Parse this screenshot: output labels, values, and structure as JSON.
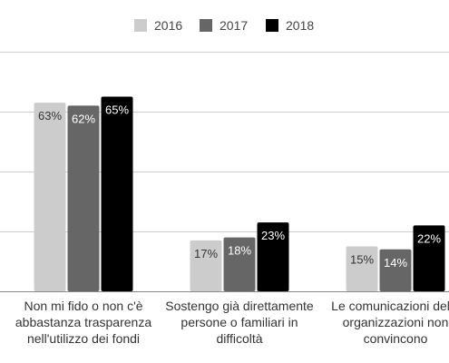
{
  "chart_data": {
    "type": "bar",
    "categories": [
      [
        "Non mi fido o non c'è",
        "abbastanza trasparenza",
        "nell'utilizzo dei fondi"
      ],
      [
        "Sostengo già direttamente",
        "persone o familiari in",
        "difficoltà"
      ],
      [
        "Le comunicazioni delle",
        "organizzazioni non",
        "convincono"
      ]
    ],
    "series": [
      {
        "name": "2016",
        "color": "#cccccc",
        "values": [
          63,
          17,
          15
        ],
        "labels": [
          "63%",
          "17%",
          "15%"
        ]
      },
      {
        "name": "2017",
        "color": "#666666",
        "values": [
          62,
          18,
          14
        ],
        "labels": [
          "62%",
          "18%",
          "14%"
        ]
      },
      {
        "name": "2018",
        "color": "#000000",
        "values": [
          65,
          23,
          22
        ],
        "labels": [
          "65%",
          "23%",
          "22%"
        ]
      }
    ],
    "ylim": [
      0,
      80
    ],
    "gridlines": [
      0,
      20,
      40,
      60,
      80
    ],
    "grid": true,
    "legend_position": "top"
  }
}
